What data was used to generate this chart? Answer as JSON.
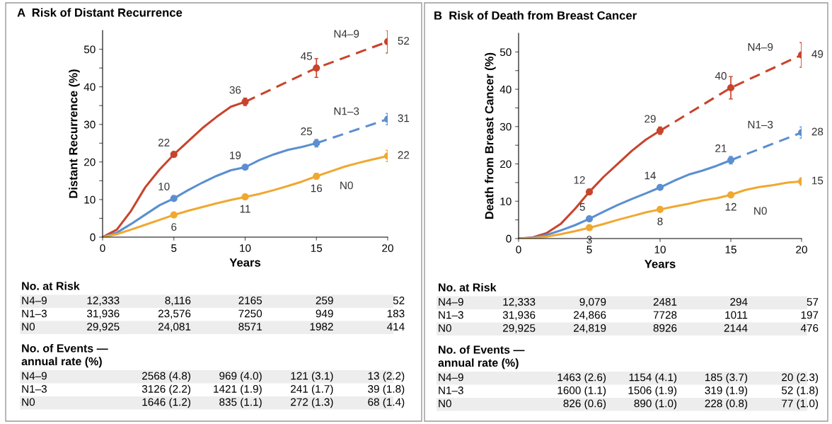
{
  "chart_data": [
    {
      "type": "line",
      "title": "A  Risk of Distant Recurrence",
      "xlabel": "Years",
      "ylabel": "Distant Recurrence (%)",
      "xlim": [
        0,
        20
      ],
      "xticks": [
        0,
        5,
        10,
        15,
        20
      ],
      "ylim": [
        0,
        55
      ],
      "yticks": [
        0,
        {
          "value": 5,
          "label": null
        },
        10,
        {
          "value": 15,
          "label": null
        },
        20,
        {
          "value": 25,
          "label": null
        },
        30,
        {
          "value": 35,
          "label": null
        },
        40,
        {
          "value": 45,
          "label": null
        },
        50
      ],
      "grid": false,
      "series": [
        {
          "color": "#c8442c",
          "line_style": "solid",
          "x": [
            0,
            1,
            2,
            3,
            4,
            5,
            6,
            7,
            8,
            9,
            10
          ],
          "values": [
            0,
            2,
            7,
            13.3,
            18,
            22,
            25.5,
            29,
            32,
            34.7,
            36
          ]
        },
        {
          "name": "N4–9",
          "color": "#c8442c",
          "line_style": "dashed",
          "x": [
            10,
            15,
            20
          ],
          "values": [
            36,
            45,
            52
          ]
        },
        {
          "type": "scatter",
          "marker": "circle",
          "color": "#c8442c",
          "x": [
            5,
            10,
            15,
            20
          ],
          "values": [
            22,
            36,
            45,
            52
          ],
          "errors": [
            0.6,
            1,
            2.5,
            3
          ],
          "value_labels": [
            "22",
            "36",
            "45",
            "52"
          ]
        },
        {
          "color": "#5b8fd0",
          "line_style": "solid",
          "x": [
            0,
            1,
            2,
            3,
            4,
            5,
            6,
            7,
            8,
            9,
            10,
            11,
            12,
            13,
            14,
            15
          ],
          "values": [
            0,
            1.2,
            3.5,
            6,
            8.5,
            10.3,
            12.5,
            14.5,
            16.3,
            17.8,
            18.6,
            20.5,
            22,
            23.2,
            24,
            25
          ]
        },
        {
          "name": "N1–3",
          "color": "#5b8fd0",
          "line_style": "dashed",
          "x": [
            15,
            20
          ],
          "values": [
            25,
            31.4
          ]
        },
        {
          "type": "scatter",
          "marker": "circle",
          "color": "#5b8fd0",
          "x": [
            5,
            10,
            15,
            20
          ],
          "values": [
            10.3,
            18.6,
            25,
            31.4
          ],
          "errors": [
            0.4,
            0.6,
            1,
            1.5
          ],
          "value_labels": [
            "10",
            "19",
            "25",
            "31"
          ]
        },
        {
          "name": "N0",
          "color": "#f0a830",
          "line_style": "solid",
          "x": [
            0,
            1,
            2,
            3,
            4,
            5,
            6,
            7,
            8,
            9,
            10,
            11,
            12,
            13,
            14,
            15,
            16,
            17,
            18,
            19,
            20
          ],
          "values": [
            0,
            0.8,
            2,
            3.3,
            4.6,
            5.9,
            7,
            8,
            9,
            9.9,
            10.7,
            11.5,
            12.5,
            13.6,
            14.8,
            16.2,
            17.5,
            18.8,
            19.8,
            20.7,
            21.6
          ]
        },
        {
          "type": "scatter",
          "marker": "circle",
          "color": "#f0a830",
          "x": [
            5,
            10,
            15,
            20
          ],
          "values": [
            5.9,
            10.7,
            16.2,
            21.6
          ],
          "errors": [
            0.3,
            0.5,
            0.8,
            1.5
          ],
          "value_labels": [
            "6",
            "11",
            "16",
            "22"
          ]
        }
      ]
    },
    {
      "type": "other",
      "title": "No. at Risk",
      "y_categories": [
        "N4–9",
        "N1–3",
        "N0"
      ],
      "categories": [
        null,
        null,
        null,
        null,
        null
      ],
      "cell_labels": [
        [
          "12,333",
          "8,116",
          "2165",
          "259",
          "52"
        ],
        [
          "31,936",
          "23,576",
          "7250",
          "949",
          "183"
        ],
        [
          "29,925",
          "24,081",
          "8571",
          "1982",
          "414"
        ]
      ]
    },
    {
      "type": "other",
      "title": "No. of Events —\nannual rate (%)",
      "y_categories": [
        "N4–9",
        "N1–3",
        "N0"
      ],
      "categories": [
        null,
        null,
        null,
        null
      ],
      "cell_labels": [
        [
          "2568 (4.8)",
          "969 (4.0)",
          "121 (3.1)",
          "13 (2.2)"
        ],
        [
          "3126 (2.2)",
          "1421 (1.9)",
          "241 (1.7)",
          "39 (1.8)"
        ],
        [
          "1646 (1.2)",
          "835 (1.1)",
          "272 (1.3)",
          "68 (1.4)"
        ]
      ]
    },
    {
      "type": "line",
      "title": "B  Risk of Death from Breast Cancer",
      "xlabel": "Years",
      "ylabel": "Death from Breast Cancer (%)",
      "xlim": [
        0,
        20
      ],
      "xticks": [
        0,
        5,
        10,
        15,
        20
      ],
      "ylim": [
        0,
        55
      ],
      "yticks": [
        0,
        {
          "value": 5,
          "label": null
        },
        10,
        {
          "value": 15,
          "label": null
        },
        20,
        {
          "value": 25,
          "label": null
        },
        30,
        {
          "value": 35,
          "label": null
        },
        40,
        {
          "value": 45,
          "label": null
        },
        50
      ],
      "grid": false,
      "series": [
        {
          "color": "#c8442c",
          "line_style": "solid",
          "x": [
            0,
            1,
            2,
            3,
            4,
            5,
            6,
            7,
            8,
            9,
            10
          ],
          "values": [
            0,
            0.3,
            1.5,
            4,
            8,
            12.5,
            16.5,
            20,
            23.5,
            26.5,
            28.9
          ]
        },
        {
          "name": "N4–9",
          "color": "#c8442c",
          "line_style": "dashed",
          "x": [
            10,
            15,
            20
          ],
          "values": [
            28.9,
            40.4,
            49.2
          ]
        },
        {
          "type": "scatter",
          "marker": "circle",
          "color": "#c8442c",
          "x": [
            5,
            10,
            15,
            20
          ],
          "values": [
            12.5,
            28.9,
            40.4,
            49.2
          ],
          "errors": [
            0.5,
            1,
            3,
            3.3
          ],
          "value_labels": [
            "12",
            "29",
            "40",
            "49"
          ]
        },
        {
          "color": "#5b8fd0",
          "line_style": "solid",
          "x": [
            0,
            1,
            2,
            3,
            4,
            5,
            6,
            7,
            8,
            9,
            10,
            11,
            12,
            13,
            14,
            15
          ],
          "values": [
            0,
            0.2,
            1,
            2.2,
            3.6,
            5.3,
            7.2,
            9,
            10.6,
            12.1,
            13.7,
            15.5,
            17.1,
            18.2,
            19.5,
            21
          ]
        },
        {
          "name": "N1–3",
          "color": "#5b8fd0",
          "line_style": "dashed",
          "x": [
            15,
            20
          ],
          "values": [
            21,
            28.4
          ]
        },
        {
          "type": "scatter",
          "marker": "circle",
          "color": "#5b8fd0",
          "x": [
            5,
            10,
            15,
            20
          ],
          "values": [
            5.3,
            13.7,
            21,
            28.4
          ],
          "errors": [
            0.3,
            0.5,
            1,
            1.5
          ],
          "value_labels": [
            "5",
            "14",
            "21",
            "28"
          ]
        },
        {
          "name": "N0",
          "color": "#f0a830",
          "line_style": "solid",
          "x": [
            0,
            1,
            2,
            3,
            4,
            5,
            6,
            7,
            8,
            9,
            10,
            11,
            12,
            13,
            14,
            15,
            16,
            17,
            18,
            19,
            20
          ],
          "values": [
            0,
            0.1,
            0.5,
            1.2,
            2,
            2.9,
            3.9,
            5,
            6,
            7,
            7.8,
            8.6,
            9.3,
            10.2,
            10.8,
            11.7,
            13,
            13.8,
            14.3,
            15,
            15.3
          ]
        },
        {
          "type": "scatter",
          "marker": "circle",
          "color": "#f0a830",
          "x": [
            5,
            10,
            15,
            20
          ],
          "values": [
            2.9,
            7.8,
            11.7,
            15.3
          ],
          "errors": [
            0.2,
            0.4,
            0.6,
            1
          ],
          "value_labels": [
            "3",
            "8",
            "12",
            "15"
          ]
        }
      ]
    },
    {
      "type": "other",
      "title": "No. at Risk",
      "y_categories": [
        "N4–9",
        "N1–3",
        "N0"
      ],
      "categories": [
        null,
        null,
        null,
        null,
        null
      ],
      "cell_labels": [
        [
          "12,333",
          "9,079",
          "2481",
          "294",
          "57"
        ],
        [
          "31,936",
          "24,866",
          "7728",
          "1011",
          "197"
        ],
        [
          "29,925",
          "24,819",
          "8926",
          "2144",
          "476"
        ]
      ]
    },
    {
      "type": "other",
      "title": "No. of Events —\nannual rate (%)",
      "y_categories": [
        "N4–9",
        "N1–3",
        "N0"
      ],
      "categories": [
        null,
        null,
        null,
        null
      ],
      "cell_labels": [
        [
          "1463 (2.6)",
          "1154 (4.1)",
          "185 (3.7)",
          "20 (2.3)"
        ],
        [
          "1600 (1.1)",
          "1506 (1.9)",
          "319 (1.9)",
          "52 (1.8)"
        ],
        [
          "826 (0.6)",
          "890 (1.0)",
          "228 (0.8)",
          "77 (1.0)"
        ]
      ]
    }
  ]
}
